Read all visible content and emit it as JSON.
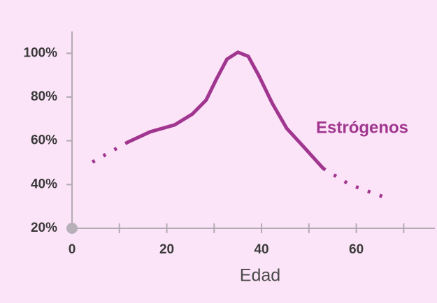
{
  "chart_data": {
    "type": "line",
    "x_label": "Edad",
    "xlim": [
      0,
      76
    ],
    "xticks": [
      0,
      20,
      40,
      60
    ],
    "x_minor_ticks": [
      10,
      30,
      50,
      70
    ],
    "ylim": [
      20,
      110
    ],
    "yticks": [
      {
        "value": 20,
        "label": "20%"
      },
      {
        "value": 40,
        "label": "40%"
      },
      {
        "value": 60,
        "label": "60%"
      },
      {
        "value": 80,
        "label": "80%"
      },
      {
        "value": 100,
        "label": "100%"
      }
    ],
    "series": [
      {
        "style": "dotted",
        "color": "#a0368f",
        "x": [
          4.3,
          11.7
        ],
        "values": [
          50.3,
          59.3
        ]
      },
      {
        "name": "Estrógenos",
        "style": "solid",
        "color": "#a0368f",
        "x": [
          11.7,
          16.5,
          21.7,
          25.4,
          28.3,
          30.5,
          32.7,
          35,
          37.2,
          39.4,
          42.3,
          45.3,
          49,
          53
        ],
        "values": [
          59.3,
          64.1,
          67.3,
          72.2,
          78.6,
          88.3,
          97.3,
          100.5,
          98.6,
          89.9,
          77,
          65.7,
          57,
          47.4
        ]
      },
      {
        "style": "dotted",
        "color": "#a0368f",
        "x": [
          53,
          58.6,
          65.6
        ],
        "values": [
          47.4,
          40,
          34.5
        ]
      }
    ]
  }
}
